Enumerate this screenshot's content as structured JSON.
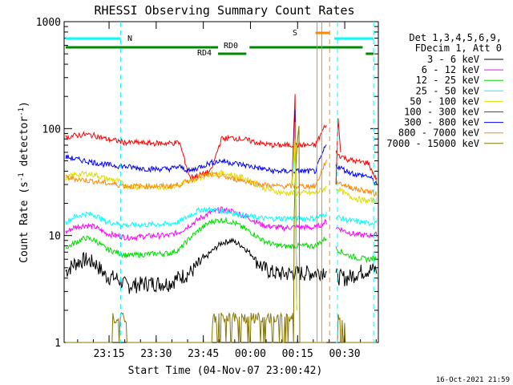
{
  "chart_data": {
    "type": "line",
    "title": "RHESSI Observing Summary Count Rates",
    "xlabel": "Start Time (04-Nov-07 23:00:42)",
    "ylabel": "Count Rate (s",
    "ylabel_sup": "-1",
    "ylabel_tail": " detector",
    "ylabel_sup2": "-1",
    "ylabel_close": ")",
    "yscale": "log",
    "ylim": [
      1,
      1000
    ],
    "xlim_minutes": [
      0,
      100
    ],
    "y_ticks": [
      {
        "value": 1,
        "label": "1"
      },
      {
        "value": 10,
        "label": "10"
      },
      {
        "value": 100,
        "label": "100"
      },
      {
        "value": 1000,
        "label": "1000"
      }
    ],
    "x_ticks": [
      {
        "minute": 14.3,
        "label": "23:15"
      },
      {
        "minute": 29.3,
        "label": "23:30"
      },
      {
        "minute": 44.3,
        "label": "23:45"
      },
      {
        "minute": 59.3,
        "label": "00:00"
      },
      {
        "minute": 74.3,
        "label": "00:15"
      },
      {
        "minute": 89.3,
        "label": "00:30"
      }
    ],
    "legend_header": [
      "Det 1,3,4,5,6,9,",
      "FDecim 1, Att 0"
    ],
    "series": [
      {
        "name": "3 - 6 keV",
        "color": "#000000",
        "values": [
          4.5,
          5.5,
          6,
          5.5,
          4.2,
          4.0,
          3.4,
          3.5,
          3.6,
          3.6,
          3.6,
          4.1,
          4.5,
          5.5,
          7.0,
          8.5,
          9.0,
          8.0,
          6.5,
          5.0,
          4.5,
          4.4,
          4.5,
          4.5,
          4.5,
          4.8,
          4.2,
          4.0,
          4.5,
          4.8,
          4.8
        ]
      },
      {
        "name": "6 - 12 keV",
        "color": "#ff00ff",
        "values": [
          10.5,
          12.0,
          12.5,
          12.0,
          10.5,
          10.0,
          9.6,
          9.7,
          9.9,
          10.0,
          10.0,
          10.8,
          12.5,
          14.5,
          16.5,
          17.5,
          17.0,
          15.5,
          14.0,
          12.5,
          12.0,
          11.8,
          12.0,
          12.0,
          11.8,
          13.5,
          12.0,
          10.8,
          10.2,
          10.0,
          10.3
        ]
      },
      {
        "name": "12 - 25 keV",
        "color": "#00dd00",
        "values": [
          7.5,
          8.5,
          9.5,
          9.0,
          7.5,
          7.0,
          6.5,
          6.6,
          6.7,
          6.8,
          6.8,
          7.4,
          9.5,
          11.5,
          13.5,
          14.0,
          13.5,
          12.0,
          10.5,
          9.0,
          8.2,
          7.9,
          8.0,
          8.0,
          8.0,
          9.5,
          7.5,
          6.6,
          6.2,
          6.0,
          6.2
        ]
      },
      {
        "name": "25 - 50 keV",
        "color": "#00ffff",
        "values": [
          13.0,
          15.0,
          16.0,
          15.5,
          13.5,
          13.0,
          12.5,
          12.6,
          12.7,
          12.8,
          12.8,
          13.5,
          15.5,
          17.5,
          17.5,
          17.0,
          16.5,
          15.5,
          15.0,
          14.5,
          14.4,
          14.5,
          14.5,
          14.5,
          14.5,
          16.0,
          15.0,
          14.0,
          13.5,
          13.0,
          13.5
        ]
      },
      {
        "name": "50 - 100 keV",
        "color": "#dddd00",
        "values": [
          34,
          37,
          38,
          37,
          34,
          33,
          29,
          28.5,
          28.5,
          28.5,
          28.5,
          29.5,
          32,
          35,
          38,
          38.5,
          37,
          35,
          32,
          28,
          26,
          25,
          25,
          25,
          25,
          28,
          28,
          24,
          22,
          21,
          22
        ]
      },
      {
        "name": "100 - 300 keV",
        "color": "#ff0000",
        "values": [
          82,
          86,
          88,
          86,
          80,
          77,
          74,
          74,
          73,
          73,
          73,
          74,
          35,
          37,
          40,
          80,
          82,
          80,
          76,
          72,
          70,
          70,
          70,
          70,
          70,
          110,
          58,
          52,
          49,
          48,
          31
        ]
      },
      {
        "name": "300 - 800 keV",
        "color": "#0000ff",
        "values": [
          55,
          52,
          50,
          48,
          46,
          45,
          44,
          43,
          42,
          42,
          42,
          44,
          40,
          44,
          48,
          50,
          48,
          46,
          44,
          42,
          40,
          40,
          40,
          40,
          40,
          70,
          45,
          40,
          37,
          36,
          30
        ]
      },
      {
        "name": "800 - 7000 keV",
        "color": "#ff8800",
        "values": [
          35,
          34,
          33,
          32,
          31,
          30,
          29,
          29,
          29,
          29,
          29,
          30,
          33,
          36,
          37,
          36,
          34,
          33,
          31,
          30,
          29,
          29,
          29,
          29,
          29,
          50,
          32,
          29,
          27,
          26,
          24
        ]
      },
      {
        "name": "7000 - 15000 keV",
        "color": "#887700",
        "values": [
          1.0,
          1.0,
          1.0,
          1.0,
          1.0,
          1.0,
          1.0,
          1.0,
          1.0,
          1.0,
          1.0,
          1.0,
          1.0,
          1.0,
          1.0,
          1.0,
          1.0,
          1.0,
          1.0,
          1.0,
          1.0,
          1.0,
          1.0,
          1.0,
          1.0,
          1.0,
          1.0,
          1.0,
          1.0,
          1.0,
          1.0
        ]
      }
    ],
    "x_minutes": [
      0,
      3.3,
      6.7,
      10.0,
      13.3,
      16.7,
      20.0,
      23.3,
      26.7,
      30.0,
      33.3,
      36.7,
      40.0,
      43.3,
      46.7,
      50.0,
      53.3,
      56.7,
      60.0,
      63.3,
      66.7,
      70.0,
      73.3,
      76.7,
      80.0,
      83.3,
      86.7,
      90.0,
      93.3,
      96.7,
      100.0
    ],
    "state_bars": [
      {
        "label": "N",
        "color": "#00ffff"
      },
      {
        "label": "RD0",
        "color": "#008800"
      },
      {
        "label": "RD4",
        "color": "#008800"
      },
      {
        "label": "S",
        "color": "#ff8800"
      }
    ],
    "timestamp": "16-Oct-2021 21:59"
  }
}
